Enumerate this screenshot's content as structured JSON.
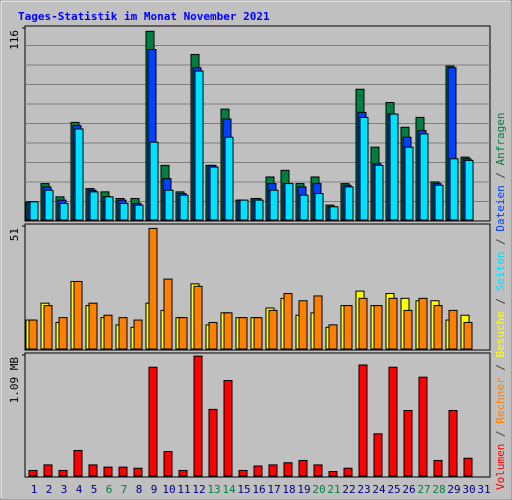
{
  "chart_data": {
    "type": "bar",
    "title": "Tages-Statistik im Monat November 2021",
    "categories": [
      "1",
      "2",
      "3",
      "4",
      "5",
      "6",
      "7",
      "8",
      "9",
      "10",
      "11",
      "12",
      "13",
      "14",
      "15",
      "16",
      "17",
      "18",
      "19",
      "20",
      "21",
      "22",
      "23",
      "24",
      "25",
      "26",
      "27",
      "28",
      "29",
      "30",
      "31"
    ],
    "category_colors": [
      "#000080",
      "#000080",
      "#000080",
      "#000080",
      "#000080",
      "#008040",
      "#008040",
      "#000080",
      "#000080",
      "#000080",
      "#000080",
      "#000080",
      "#008040",
      "#008040",
      "#000080",
      "#000080",
      "#000080",
      "#000080",
      "#000080",
      "#008040",
      "#008040",
      "#000080",
      "#000080",
      "#000080",
      "#000080",
      "#000080",
      "#008040",
      "#008040",
      "#000080",
      "#000080",
      "#000080"
    ],
    "legend_separator": " / ",
    "panels": [
      {
        "ylim": [
          0,
          116
        ],
        "yticks": [
          116
        ],
        "series": [
          {
            "name": "Anfragen",
            "color": "#008040",
            "values": [
              11,
              22,
              14,
              59,
              19,
              17,
              13,
              13,
              114,
              33,
              17,
              100,
              33,
              67,
              12,
              13,
              26,
              30,
              22,
              26,
              9,
              22,
              79,
              44,
              71,
              56,
              62,
              23,
              93,
              38,
              0
            ]
          },
          {
            "name": "Dateien",
            "color": "#0040FF",
            "values": [
              11,
              20,
              12,
              57,
              18,
              14,
              12,
              10,
              103,
              25,
              16,
              92,
              33,
              61,
              12,
              13,
              22,
              22,
              20,
              22,
              8,
              21,
              65,
              34,
              64,
              50,
              54,
              22,
              92,
              37,
              0
            ]
          },
          {
            "name": "Seiten",
            "color": "#00E0FF",
            "values": [
              11,
              18,
              10,
              55,
              17,
              14,
              10,
              9,
              47,
              18,
              15,
              90,
              32,
              50,
              12,
              12,
              18,
              22,
              15,
              16,
              8,
              20,
              62,
              33,
              64,
              44,
              52,
              21,
              37,
              36,
              0
            ]
          }
        ]
      },
      {
        "ylim": [
          0,
          51
        ],
        "yticks": [
          51
        ],
        "series": [
          {
            "name": "Besuche",
            "color": "#FFFF00",
            "values": [
              12,
              19,
              11,
              28,
              18,
              13,
              10,
              9,
              19,
              16,
              13,
              27,
              10,
              15,
              13,
              13,
              17,
              21,
              14,
              15,
              9,
              18,
              24,
              18,
              23,
              21,
              20,
              20,
              12,
              14,
              0
            ]
          },
          {
            "name": "Rechner",
            "color": "#FF8000",
            "values": [
              12,
              18,
              13,
              28,
              19,
              14,
              13,
              12,
              50,
              29,
              13,
              26,
              11,
              15,
              13,
              13,
              16,
              23,
              20,
              22,
              10,
              18,
              21,
              18,
              21,
              16,
              21,
              18,
              16,
              11,
              0
            ]
          }
        ]
      },
      {
        "ylim": [
          0,
          1.09
        ],
        "yticks": [
          {
            "value": 1.09,
            "label": "1.09 MB"
          }
        ],
        "series": [
          {
            "name": "Volumen",
            "color": "#FF0000",
            "values": [
              0.05,
              0.1,
              0.05,
              0.23,
              0.1,
              0.08,
              0.08,
              0.07,
              0.98,
              0.22,
              0.05,
              1.08,
              0.6,
              0.86,
              0.05,
              0.09,
              0.1,
              0.12,
              0.14,
              0.1,
              0.04,
              0.07,
              1.0,
              0.38,
              0.98,
              0.59,
              0.89,
              0.14,
              0.59,
              0.16,
              0
            ]
          }
        ]
      }
    ]
  }
}
